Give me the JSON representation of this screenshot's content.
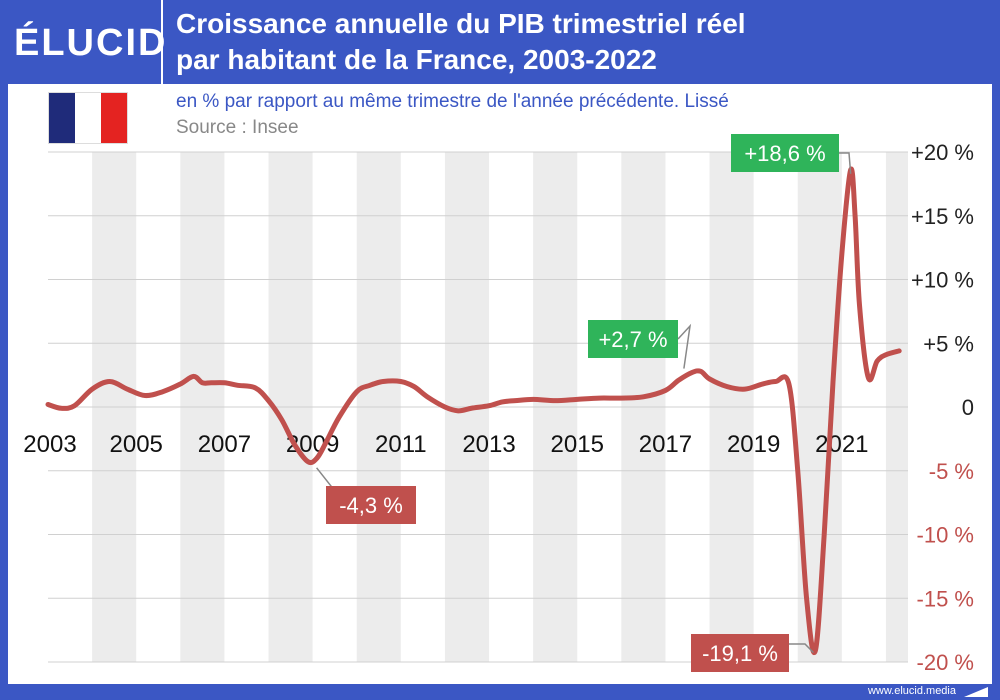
{
  "brand": {
    "logo": "ÉLUCID",
    "footer": "www.elucid.media"
  },
  "header": {
    "title_line1": "Croissance annuelle du PIB trimestriel réel",
    "title_line2": "par habitant de la France, 2003-2022"
  },
  "subtitle": "en % par rapport au même trimestre de l'année précédente. Lissé",
  "source": "Source : Insee",
  "colors": {
    "brand_blue": "#3b57c4",
    "line": "#c0504d",
    "positive": "#2fb45a",
    "negative": "#c0504d",
    "stripe": "#ececec"
  },
  "chart_data": {
    "type": "line",
    "x_tick_labels": [
      "2003",
      "2005",
      "2007",
      "2009",
      "2011",
      "2013",
      "2015",
      "2017",
      "2019",
      "2021"
    ],
    "y_ticks": [
      20,
      15,
      10,
      5,
      0,
      -5,
      -10,
      -15,
      -20
    ],
    "y_tick_labels": [
      "+20 %",
      "+15 %",
      "+10 %",
      "+5 %",
      "0",
      "-5 %",
      "-10 %",
      "-15 %",
      "-20 %"
    ],
    "ylim": [
      -20,
      20
    ],
    "xlim": [
      2003,
      2022.5
    ],
    "grid": true,
    "x": [
      2003,
      2003.3,
      2003.6,
      2004,
      2004.4,
      2004.8,
      2005.2,
      2005.6,
      2006,
      2006.3,
      2006.5,
      2006.7,
      2007,
      2007.3,
      2007.7,
      2008,
      2008.3,
      2008.6,
      2008.9,
      2009.1,
      2009.3,
      2009.6,
      2010,
      2010.3,
      2010.6,
      2011,
      2011.3,
      2011.6,
      2012,
      2012.3,
      2012.6,
      2013,
      2013.3,
      2013.6,
      2014,
      2014.5,
      2015,
      2015.5,
      2016,
      2016.5,
      2017,
      2017.3,
      2017.6,
      2017.8,
      2018,
      2018.4,
      2018.8,
      2019.2,
      2019.5,
      2019.8,
      2020,
      2020.2,
      2020.4,
      2020.6,
      2020.8,
      2021,
      2021.2,
      2021.3,
      2021.4,
      2021.6,
      2021.8,
      2022,
      2022.3
    ],
    "values": [
      0.2,
      -0.1,
      0.1,
      1.4,
      2.0,
      1.4,
      0.9,
      1.2,
      1.8,
      2.4,
      1.9,
      1.9,
      1.9,
      1.7,
      1.5,
      0.5,
      -1.0,
      -3.0,
      -4.3,
      -4.0,
      -2.8,
      -0.8,
      1.2,
      1.7,
      2.0,
      2.0,
      1.6,
      0.8,
      0.0,
      -0.3,
      -0.1,
      0.1,
      0.4,
      0.5,
      0.6,
      0.5,
      0.6,
      0.7,
      0.7,
      0.8,
      1.3,
      2.1,
      2.7,
      2.8,
      2.2,
      1.6,
      1.4,
      1.8,
      2.0,
      1.8,
      -5.0,
      -15.0,
      -19.1,
      -10.0,
      2.0,
      12.0,
      18.6,
      15.0,
      8.0,
      2.3,
      3.6,
      4.1,
      4.4
    ],
    "annotations": [
      {
        "text": "-4,3 %",
        "x": 2009.0,
        "y": -4.3,
        "kind": "negative"
      },
      {
        "text": "+2,7 %",
        "x": 2017.6,
        "y": 2.7,
        "kind": "positive"
      },
      {
        "text": "-19,1 %",
        "x": 2020.4,
        "y": -19.1,
        "kind": "negative"
      },
      {
        "text": "+18,6 %",
        "x": 2021.2,
        "y": 18.6,
        "kind": "positive"
      }
    ]
  }
}
